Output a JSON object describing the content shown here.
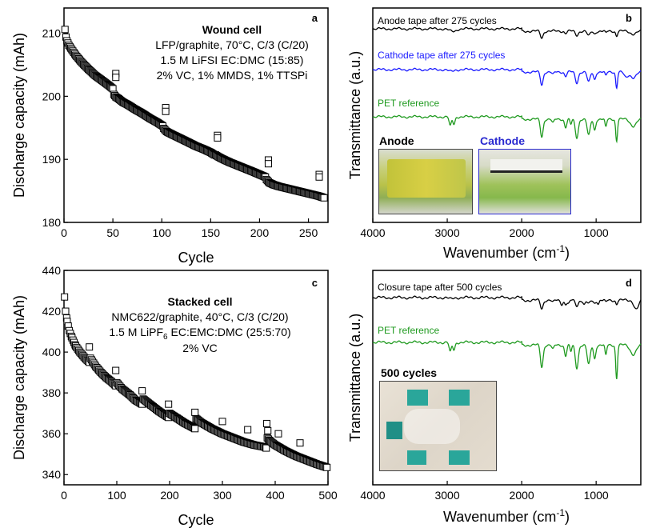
{
  "figure": {
    "background": "#ffffff",
    "colors": {
      "axis": "#000000",
      "black_series": "#000000",
      "blue_series": "#1a1aff",
      "green_series": "#1f9a1f",
      "photo_border_blue": "#2a2ad0"
    }
  },
  "chart_data": [
    {
      "panel": "a",
      "type": "scatter",
      "marker": "open-square",
      "annotation_title": "Wound cell",
      "annotation_lines": [
        "LFP/graphite, 70°C, C/3 (C/20)",
        "1.5 M LiFSI EC:DMC (15:85)",
        "2% VC, 1% MMDS, 1% TTSPi"
      ],
      "xlabel": "Cycle",
      "ylabel": "Discharge capacity (mAh)",
      "xlim": [
        0,
        270
      ],
      "ylim": [
        180,
        214
      ],
      "xticks": [
        0,
        50,
        100,
        150,
        200,
        250
      ],
      "yticks": [
        180,
        190,
        200,
        210
      ],
      "segments": [
        {
          "x": [
            1,
            2,
            3,
            5,
            8,
            12,
            18,
            25,
            32,
            40,
            46,
            50
          ],
          "y": [
            210.6,
            209.4,
            208.8,
            208.1,
            207.4,
            206.5,
            205.4,
            204.3,
            203.3,
            202.4,
            201.7,
            201.2
          ]
        },
        {
          "x": [
            51,
            53,
            56,
            60,
            66,
            72,
            80,
            88,
            95,
            101
          ],
          "y": [
            200.3,
            199.9,
            199.6,
            199.1,
            198.6,
            198.0,
            197.3,
            196.5,
            195.9,
            195.3
          ]
        },
        {
          "x": [
            102,
            105,
            110,
            118,
            126,
            135,
            143,
            150,
            154
          ],
          "y": [
            194.9,
            194.4,
            194.0,
            193.4,
            192.8,
            192.1,
            191.6,
            191.1,
            190.7
          ]
        },
        {
          "x": [
            155,
            158,
            163,
            170,
            178,
            186,
            194,
            200,
            206
          ],
          "y": [
            190.7,
            190.4,
            190.0,
            189.5,
            189.0,
            188.5,
            188.0,
            187.6,
            187.2
          ]
        },
        {
          "x": [
            207,
            210,
            214,
            220,
            228,
            236,
            244,
            252,
            260,
            266
          ],
          "y": [
            186.8,
            186.3,
            186.0,
            185.7,
            185.4,
            185.1,
            184.8,
            184.5,
            184.2,
            183.9
          ]
        }
      ],
      "check_points": {
        "x": [
          53,
          53,
          104,
          104,
          157,
          157,
          209,
          209,
          261,
          261
        ],
        "y": [
          203.6,
          203.0,
          198.2,
          197.6,
          193.8,
          193.4,
          189.9,
          189.3,
          187.6,
          187.2
        ]
      }
    },
    {
      "panel": "c",
      "type": "scatter",
      "marker": "open-square",
      "annotation_title": "Stacked cell",
      "annotation_lines": [
        "NMC622/graphite, 40°C, C/3 (C/20)",
        "1.5 M LiPF",
        "2% VC"
      ],
      "annotation_line2_sub": "6",
      "annotation_line2_rest": " EC:EMC:DMC (25:5:70)",
      "xlabel": "Cycle",
      "ylabel": "Discharge capacity (mAh)",
      "xlim": [
        0,
        500
      ],
      "ylim": [
        335,
        440
      ],
      "xticks": [
        0,
        100,
        200,
        300,
        400,
        500
      ],
      "yticks": [
        340,
        360,
        380,
        400,
        420,
        440
      ],
      "segments": [
        {
          "x": [
            1,
            3,
            6,
            10,
            15,
            22,
            30,
            40,
            48
          ],
          "y": [
            427,
            420,
            415,
            410.5,
            407,
            403,
            400,
            397,
            395
          ]
        },
        {
          "x": [
            50,
            60,
            70,
            80,
            90,
            98
          ],
          "y": [
            397,
            393,
            390,
            387.5,
            385.5,
            383.5
          ]
        },
        {
          "x": [
            100,
            110,
            125,
            135,
            148
          ],
          "y": [
            385,
            382,
            379,
            376.5,
            374.5
          ]
        },
        {
          "x": [
            150,
            165,
            180,
            195,
            198
          ],
          "y": [
            377,
            374,
            371,
            368.5,
            368
          ]
        },
        {
          "x": [
            200,
            215,
            230,
            245,
            248
          ],
          "y": [
            370,
            367.5,
            365,
            363,
            362.5
          ]
        },
        {
          "x": [
            250,
            260,
            280,
            300,
            320,
            340,
            360,
            380,
            383
          ],
          "y": [
            367.5,
            365.5,
            362.5,
            360,
            358,
            356,
            354.5,
            353.5,
            353
          ]
        },
        {
          "x": [
            385,
            390,
            400,
            420,
            440,
            460,
            480,
            498
          ],
          "y": [
            358,
            356.5,
            354.5,
            351.5,
            349,
            347,
            345,
            343.5
          ]
        }
      ],
      "check_points": {
        "x": [
          48,
          98,
          148,
          198,
          248,
          300,
          348,
          384,
          386,
          406,
          447
        ],
        "y": [
          402.5,
          391,
          381,
          374.5,
          370.5,
          366,
          362,
          365,
          361.5,
          360,
          355.5
        ]
      }
    },
    {
      "panel": "b",
      "type": "line",
      "xlabel": "Wavenumber (cm",
      "xlabel_sup": "-1",
      "xlabel_close": ")",
      "ylabel": "Transmittance (a.u.)",
      "x_reversed": true,
      "xlim": [
        4000,
        400
      ],
      "xticks": [
        4000,
        3000,
        2000,
        1000
      ],
      "series": [
        {
          "name": "Anode tape after 275 cycles",
          "color": "#000000",
          "offset": 0.0,
          "peaks": [
            [
              2950,
              35,
              0.3
            ],
            [
              2900,
              30,
              0.25
            ],
            [
              1730,
              18,
              1.0
            ],
            [
              1410,
              15,
              0.3
            ],
            [
              1260,
              20,
              0.6
            ],
            [
              1100,
              20,
              0.7
            ],
            [
              1020,
              15,
              0.4
            ],
            [
              870,
              12,
              0.3
            ],
            [
              725,
              12,
              0.7
            ],
            [
              500,
              40,
              0.4
            ]
          ]
        },
        {
          "name": "Cathode tape after 275 cycles",
          "color": "#1a1aff",
          "offset": 1.0,
          "peaks": [
            [
              2950,
              35,
              0.3
            ],
            [
              1730,
              18,
              1.9
            ],
            [
              1580,
              15,
              0.4
            ],
            [
              1410,
              15,
              0.6
            ],
            [
              1260,
              20,
              1.6
            ],
            [
              1100,
              20,
              1.5
            ],
            [
              1020,
              15,
              1.1
            ],
            [
              870,
              12,
              0.6
            ],
            [
              725,
              12,
              2.3
            ],
            [
              600,
              25,
              0.8
            ],
            [
              500,
              40,
              0.8
            ]
          ]
        },
        {
          "name": "PET reference",
          "color": "#1f9a1f",
          "offset": 2.0,
          "peaks": [
            [
              2960,
              15,
              1.4
            ],
            [
              2910,
              15,
              1.1
            ],
            [
              1730,
              18,
              2.6
            ],
            [
              1580,
              15,
              0.6
            ],
            [
              1410,
              15,
              1.2
            ],
            [
              1340,
              12,
              0.8
            ],
            [
              1260,
              20,
              2.7
            ],
            [
              1100,
              20,
              2.4
            ],
            [
              1020,
              15,
              1.6
            ],
            [
              870,
              12,
              1.2
            ],
            [
              725,
              12,
              3.2
            ],
            [
              500,
              40,
              1.0
            ]
          ]
        }
      ],
      "photo_labels": [
        "Anode",
        "Cathode"
      ]
    },
    {
      "panel": "d",
      "type": "line",
      "xlabel": "Wavenumber (cm",
      "xlabel_sup": "-1",
      "xlabel_close": ")",
      "ylabel": "Transmittance (a.u.)",
      "x_reversed": true,
      "xlim": [
        4000,
        400
      ],
      "xticks": [
        4000,
        3000,
        2000,
        1000
      ],
      "series": [
        {
          "name": "Closure tape after 500 cycles",
          "color": "#000000",
          "offset": 0.0,
          "peaks": [
            [
              2950,
              30,
              0.2
            ],
            [
              1730,
              18,
              1.1
            ],
            [
              1580,
              15,
              0.3
            ],
            [
              1460,
              15,
              0.5
            ],
            [
              1410,
              15,
              0.5
            ],
            [
              1370,
              15,
              0.5
            ],
            [
              1260,
              20,
              0.7
            ],
            [
              1160,
              15,
              0.6
            ],
            [
              1100,
              20,
              0.5
            ],
            [
              1020,
              15,
              0.4
            ],
            [
              970,
              12,
              0.4
            ],
            [
              870,
              12,
              0.3
            ],
            [
              725,
              12,
              0.5
            ],
            [
              460,
              30,
              1.2
            ]
          ]
        },
        {
          "name": "PET reference",
          "color": "#1f9a1f",
          "offset": 1.0,
          "peaks": [
            [
              2960,
              15,
              1.3
            ],
            [
              2910,
              15,
              1.0
            ],
            [
              1730,
              18,
              2.9
            ],
            [
              1580,
              15,
              0.6
            ],
            [
              1410,
              15,
              1.4
            ],
            [
              1340,
              12,
              0.9
            ],
            [
              1260,
              20,
              3.0
            ],
            [
              1100,
              20,
              2.6
            ],
            [
              1020,
              15,
              1.8
            ],
            [
              870,
              12,
              1.4
            ],
            [
              725,
              12,
              4.4
            ],
            [
              500,
              40,
              1.2
            ]
          ]
        }
      ],
      "photo_labels": [
        "500 cycles"
      ]
    }
  ]
}
